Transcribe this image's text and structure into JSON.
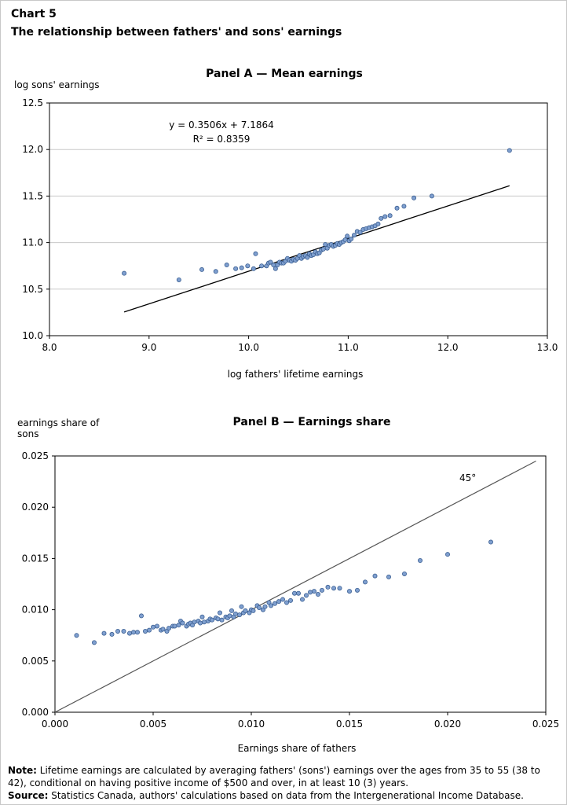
{
  "header": {
    "chart_label": "Chart 5",
    "title": "The relationship between fathers' and sons' earnings"
  },
  "chart_data": [
    {
      "type": "scatter",
      "title": "Panel A — Mean earnings",
      "xlabel": "log fathers' lifetime earnings",
      "ylabel": "log sons' earnings",
      "xlim": [
        8.0,
        13.0
      ],
      "ylim": [
        10.0,
        12.5
      ],
      "x_ticks": [
        "8.0",
        "9.0",
        "10.0",
        "11.0",
        "12.0",
        "13.0"
      ],
      "y_ticks": [
        "10.0",
        "10.5",
        "11.0",
        "11.5",
        "12.0",
        "12.5"
      ],
      "gridlines": "horizontal",
      "marker_color": "#7f9fcf",
      "line_color": "#000000",
      "equation": "y = 0.3506x + 7.1864",
      "r_squared": "R² = 0.8359",
      "trendline": {
        "slope": 0.3506,
        "intercept": 7.1864,
        "x_range": [
          8.75,
          12.62
        ]
      },
      "points": [
        [
          8.75,
          10.67
        ],
        [
          9.3,
          10.6
        ],
        [
          9.53,
          10.71
        ],
        [
          9.67,
          10.69
        ],
        [
          9.78,
          10.76
        ],
        [
          9.87,
          10.72
        ],
        [
          9.93,
          10.73
        ],
        [
          9.99,
          10.75
        ],
        [
          10.05,
          10.72
        ],
        [
          10.07,
          10.88
        ],
        [
          10.13,
          10.75
        ],
        [
          10.18,
          10.75
        ],
        [
          10.2,
          10.78
        ],
        [
          10.22,
          10.79
        ],
        [
          10.25,
          10.76
        ],
        [
          10.27,
          10.72
        ],
        [
          10.29,
          10.76
        ],
        [
          10.31,
          10.79
        ],
        [
          10.33,
          10.78
        ],
        [
          10.35,
          10.78
        ],
        [
          10.37,
          10.8
        ],
        [
          10.39,
          10.83
        ],
        [
          10.41,
          10.81
        ],
        [
          10.43,
          10.8
        ],
        [
          10.45,
          10.82
        ],
        [
          10.47,
          10.81
        ],
        [
          10.49,
          10.83
        ],
        [
          10.51,
          10.86
        ],
        [
          10.53,
          10.83
        ],
        [
          10.55,
          10.85
        ],
        [
          10.57,
          10.86
        ],
        [
          10.59,
          10.84
        ],
        [
          10.61,
          10.88
        ],
        [
          10.63,
          10.86
        ],
        [
          10.65,
          10.87
        ],
        [
          10.67,
          10.9
        ],
        [
          10.69,
          10.88
        ],
        [
          10.71,
          10.89
        ],
        [
          10.73,
          10.92
        ],
        [
          10.75,
          10.93
        ],
        [
          10.77,
          10.98
        ],
        [
          10.79,
          10.94
        ],
        [
          10.81,
          10.97
        ],
        [
          10.83,
          10.98
        ],
        [
          10.85,
          10.96
        ],
        [
          10.87,
          10.97
        ],
        [
          10.89,
          10.99
        ],
        [
          10.91,
          10.98
        ],
        [
          10.93,
          11.0
        ],
        [
          10.95,
          11.01
        ],
        [
          10.97,
          11.03
        ],
        [
          10.99,
          11.07
        ],
        [
          11.01,
          11.02
        ],
        [
          11.03,
          11.04
        ],
        [
          11.06,
          11.08
        ],
        [
          11.09,
          11.12
        ],
        [
          11.12,
          11.11
        ],
        [
          11.15,
          11.14
        ],
        [
          11.18,
          11.15
        ],
        [
          11.21,
          11.16
        ],
        [
          11.24,
          11.17
        ],
        [
          11.27,
          11.18
        ],
        [
          11.3,
          11.2
        ],
        [
          11.33,
          11.26
        ],
        [
          11.37,
          11.28
        ],
        [
          11.42,
          11.29
        ],
        [
          11.49,
          11.37
        ],
        [
          11.56,
          11.39
        ],
        [
          11.66,
          11.48
        ],
        [
          11.84,
          11.5
        ],
        [
          12.62,
          11.99
        ]
      ]
    },
    {
      "type": "scatter",
      "title": "Panel B — Earnings share",
      "xlabel": "Earnings share of fathers",
      "ylabel": "earnings share of sons",
      "ylabel_lines": [
        "earnings share of",
        "sons"
      ],
      "xlim": [
        0.0,
        0.025
      ],
      "ylim": [
        0.0,
        0.025
      ],
      "x_ticks": [
        "0.000",
        "0.005",
        "0.010",
        "0.015",
        "0.020",
        "0.025"
      ],
      "y_ticks": [
        "0.000",
        "0.005",
        "0.010",
        "0.015",
        "0.020",
        "0.025"
      ],
      "gridlines": "none",
      "marker_color": "#7f9fcf",
      "line_color": "#555555",
      "reference_line_label": "45°",
      "reference_line": {
        "from": [
          0.0,
          0.0
        ],
        "to": [
          0.0245,
          0.0245
        ]
      },
      "points": [
        [
          0.0011,
          0.0075
        ],
        [
          0.002,
          0.0068
        ],
        [
          0.0025,
          0.0077
        ],
        [
          0.0029,
          0.0076
        ],
        [
          0.0032,
          0.0079
        ],
        [
          0.0035,
          0.0079
        ],
        [
          0.0038,
          0.0077
        ],
        [
          0.004,
          0.0078
        ],
        [
          0.0042,
          0.0078
        ],
        [
          0.0044,
          0.0094
        ],
        [
          0.0046,
          0.0079
        ],
        [
          0.0048,
          0.008
        ],
        [
          0.005,
          0.0083
        ],
        [
          0.0052,
          0.0084
        ],
        [
          0.0054,
          0.008
        ],
        [
          0.0055,
          0.0081
        ],
        [
          0.0057,
          0.0079
        ],
        [
          0.0058,
          0.0082
        ],
        [
          0.006,
          0.0084
        ],
        [
          0.0061,
          0.0084
        ],
        [
          0.0063,
          0.0085
        ],
        [
          0.0064,
          0.0089
        ],
        [
          0.0065,
          0.0087
        ],
        [
          0.0067,
          0.0084
        ],
        [
          0.0068,
          0.0086
        ],
        [
          0.0069,
          0.0087
        ],
        [
          0.007,
          0.0085
        ],
        [
          0.0071,
          0.0088
        ],
        [
          0.0073,
          0.0089
        ],
        [
          0.0074,
          0.0087
        ],
        [
          0.0075,
          0.0093
        ],
        [
          0.0076,
          0.0088
        ],
        [
          0.0078,
          0.0089
        ],
        [
          0.0079,
          0.0091
        ],
        [
          0.008,
          0.009
        ],
        [
          0.0082,
          0.0092
        ],
        [
          0.0083,
          0.0091
        ],
        [
          0.0084,
          0.0097
        ],
        [
          0.0085,
          0.009
        ],
        [
          0.0087,
          0.0093
        ],
        [
          0.0088,
          0.0092
        ],
        [
          0.0089,
          0.0094
        ],
        [
          0.009,
          0.0099
        ],
        [
          0.0091,
          0.0093
        ],
        [
          0.0092,
          0.0096
        ],
        [
          0.0094,
          0.0095
        ],
        [
          0.0095,
          0.0103
        ],
        [
          0.0096,
          0.0097
        ],
        [
          0.0097,
          0.0099
        ],
        [
          0.0099,
          0.0097
        ],
        [
          0.01,
          0.01
        ],
        [
          0.0101,
          0.0099
        ],
        [
          0.0103,
          0.0104
        ],
        [
          0.0104,
          0.0102
        ],
        [
          0.0106,
          0.01
        ],
        [
          0.0107,
          0.0103
        ],
        [
          0.0109,
          0.0107
        ],
        [
          0.011,
          0.0104
        ],
        [
          0.0112,
          0.0106
        ],
        [
          0.0114,
          0.0108
        ],
        [
          0.0116,
          0.011
        ],
        [
          0.0118,
          0.0107
        ],
        [
          0.012,
          0.0109
        ],
        [
          0.0122,
          0.0116
        ],
        [
          0.0124,
          0.0116
        ],
        [
          0.0126,
          0.011
        ],
        [
          0.0128,
          0.0114
        ],
        [
          0.013,
          0.0117
        ],
        [
          0.0132,
          0.0118
        ],
        [
          0.0134,
          0.0115
        ],
        [
          0.0136,
          0.0119
        ],
        [
          0.0139,
          0.0122
        ],
        [
          0.0142,
          0.0121
        ],
        [
          0.0145,
          0.0121
        ],
        [
          0.015,
          0.0118
        ],
        [
          0.0154,
          0.0119
        ],
        [
          0.0158,
          0.0127
        ],
        [
          0.0163,
          0.0133
        ],
        [
          0.017,
          0.0132
        ],
        [
          0.0178,
          0.0135
        ],
        [
          0.0186,
          0.0148
        ],
        [
          0.02,
          0.0154
        ],
        [
          0.0222,
          0.0166
        ]
      ]
    }
  ],
  "footer": {
    "note_label": "Note:",
    "note_text": " Lifetime earnings are calculated by averaging fathers' (sons') earnings over the ages from 35 to 55 (38 to 42), conditional on having positive income of $500 and over, in at least 10 (3) years.",
    "source_label": "Source:",
    "source_text": " Statistics Canada, authors' calculations based on data from the Intergenerational Income Database."
  }
}
